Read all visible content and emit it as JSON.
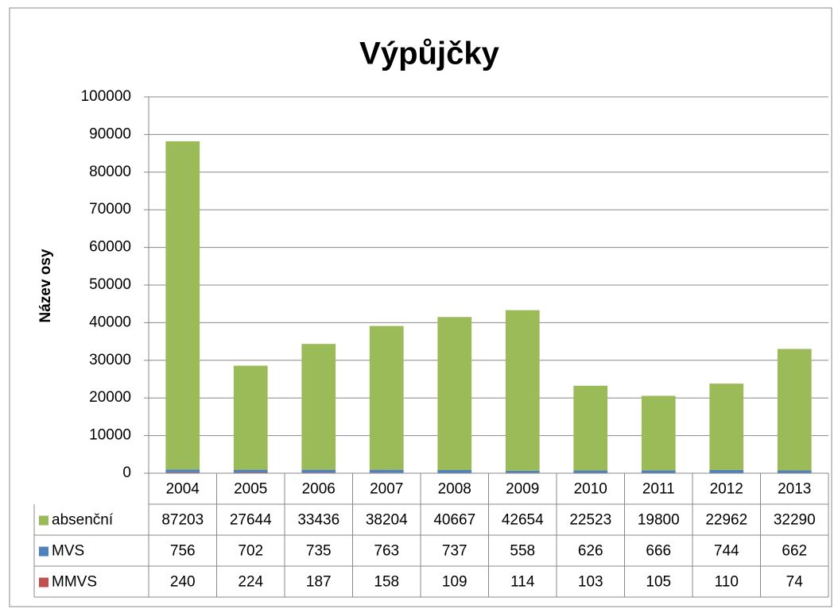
{
  "chart_data": {
    "type": "stacked_bar",
    "title": "Výpůjčky",
    "y_label": "Název osy",
    "categories": [
      "2004",
      "2005",
      "2006",
      "2007",
      "2008",
      "2009",
      "2010",
      "2011",
      "2012",
      "2013"
    ],
    "series": [
      {
        "name": "absenční",
        "color": "#9bbb59",
        "values": [
          87203,
          27644,
          33436,
          38204,
          40667,
          42654,
          22523,
          19800,
          22962,
          32290
        ]
      },
      {
        "name": "MVS",
        "color": "#4f81bd",
        "values": [
          756,
          702,
          735,
          763,
          737,
          558,
          626,
          666,
          744,
          662
        ]
      },
      {
        "name": "MMVS",
        "color": "#c0504d",
        "values": [
          240,
          224,
          187,
          158,
          109,
          114,
          103,
          105,
          110,
          74
        ]
      }
    ],
    "ylim": [
      0,
      100000
    ],
    "yticks": [
      0,
      10000,
      20000,
      30000,
      40000,
      50000,
      60000,
      70000,
      80000,
      90000,
      100000
    ],
    "grid": true,
    "data_table": true
  }
}
